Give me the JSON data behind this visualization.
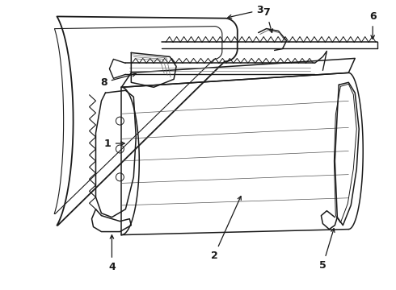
{
  "background_color": "#ffffff",
  "line_color": "#1a1a1a",
  "figsize": [
    4.9,
    3.6
  ],
  "dpi": 100,
  "label_fontsize": 9
}
